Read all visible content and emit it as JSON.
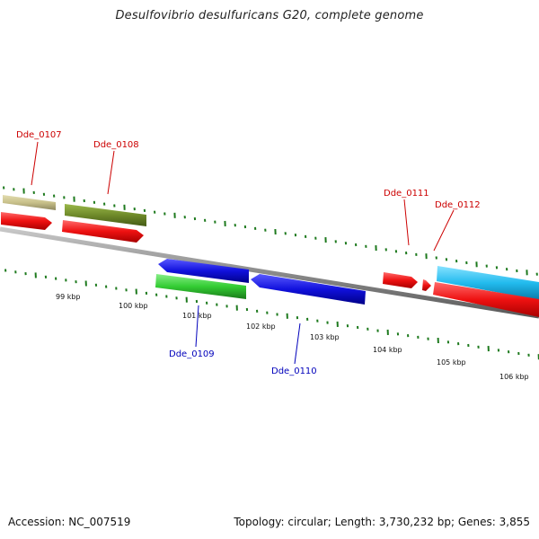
{
  "title": "Desulfovibrio desulfuricans G20, complete genome",
  "footer": {
    "accession": "Accession: NC_007519",
    "summary": "Topology: circular; Length: 3,730,232 bp; Genes: 3,855"
  },
  "colors": {
    "backbone": "#8a8a8a",
    "tick": "#1e7a1e",
    "forward_label": "#cc0000",
    "reverse_label": "#0000bb",
    "gene_red": "#ee1111",
    "gene_khaki": "#c8c08a",
    "gene_olive": "#6f8a2a",
    "gene_blue": "#1111dd",
    "gene_green": "#33cc33",
    "gene_cyan": "#22bbee"
  },
  "scale_labels": [
    "99 kbp",
    "100 kbp",
    "101 kbp",
    "102 kbp",
    "103 kbp",
    "104 kbp",
    "105 kbp",
    "106 kbp"
  ],
  "gene_labels": {
    "dde_0107": "Dde_0107",
    "dde_0108": "Dde_0108",
    "dde_0109": "Dde_0109",
    "dde_0110": "Dde_0110",
    "dde_0111": "Dde_0111",
    "dde_0112": "Dde_0112"
  }
}
